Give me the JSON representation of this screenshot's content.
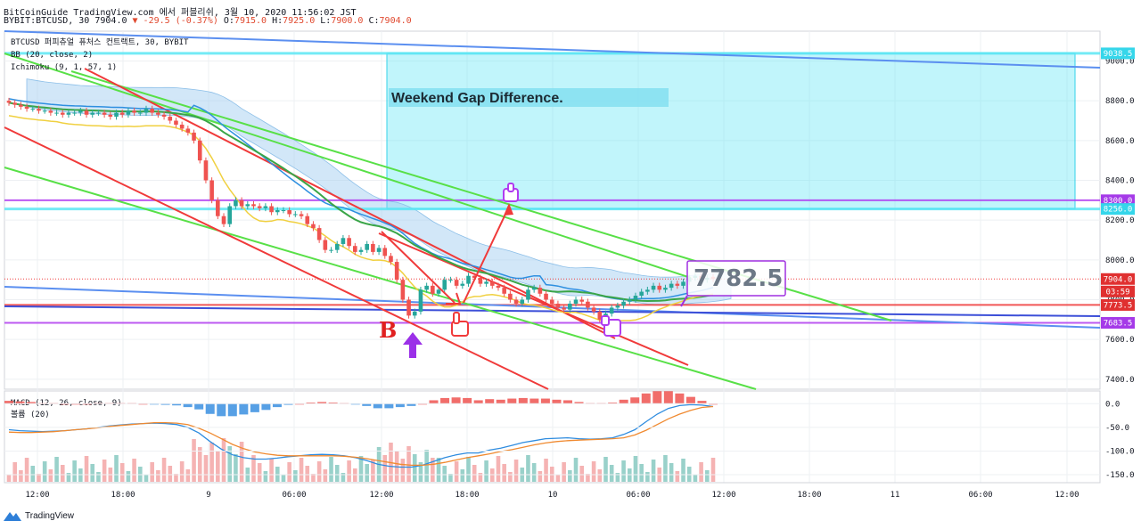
{
  "header": {
    "line1": "BitCoinGuide TradingView.com 에서 퍼블리쉬, 3월 10, 2020 11:56:02 JST",
    "symbol": "BYBIT:BTCUSD, 30",
    "last": "7904.0",
    "change": "▼ -29.5 (-0.37%)",
    "o_label": "O:",
    "o": "7915.0",
    "h_label": "H:",
    "h": "7925.0",
    "l_label": "L:",
    "l": "7900.0",
    "c_label": "C:",
    "c": "7904.0"
  },
  "legend": {
    "main": "BTCUSD 퍼피츄얼 퓨처스 컨트랙트, 30, BYBIT",
    "bb": "BB (20, close, 2)",
    "ichimoku": "Ichimoku (9, 1, 57, 1)",
    "macd": "MACD (12, 26, close, 9)",
    "volume": "볼륨 (20)"
  },
  "annotations": {
    "gap_box": "Weekend Gap Difference.",
    "price_callout": "7782.5",
    "b_mark": "B"
  },
  "footer": {
    "brand": "TradingView"
  },
  "colors": {
    "up": "#26a69a",
    "down": "#ef5350",
    "cyan": "#5ce6f5",
    "violet": "#b03cf0",
    "red_line": "#f03a3a",
    "green_line": "#58e047",
    "blue_line": "#5b8ff0",
    "bb_blue": "#2e8fe0",
    "ichi_green": "#3aa548",
    "ichi_yellow": "#f0d040",
    "macd_blue": "#2f8cdf",
    "macd_orange": "#f08a30"
  },
  "chart_data": [
    {
      "type": "candlestick",
      "title": "BTCUSD 퍼피츄얼 퓨처스 컨트랙트, 30, BYBIT",
      "ylim": [
        7350,
        9150
      ],
      "yticks": [
        "7400.0",
        "7600.0",
        "7800.0",
        "8000.0",
        "8200.0",
        "8400.0",
        "8600.0",
        "8800.0",
        "9000.0"
      ],
      "xticks": [
        "12:00",
        "18:00",
        "9",
        "06:00",
        "12:00",
        "18:00",
        "10",
        "06:00",
        "12:00",
        "18:00",
        "11",
        "06:00",
        "12:00"
      ],
      "price_labels": [
        {
          "label": "9038.5",
          "color": "cyan"
        },
        {
          "label": "8300.0",
          "color": "violet"
        },
        {
          "label": "8256.0",
          "color": "cyan"
        },
        {
          "label": "7904.0",
          "color": "red"
        },
        {
          "label": "03:59",
          "color": "red"
        },
        {
          "label": "7773.5",
          "color": "red"
        },
        {
          "label": "7683.5",
          "color": "violet"
        }
      ],
      "hlines": [
        {
          "y": 9038.5,
          "color": "cyan"
        },
        {
          "y": 8256,
          "color": "cyan"
        },
        {
          "y": 8300,
          "color": "violet"
        },
        {
          "y": 7773.5,
          "color": "red"
        },
        {
          "y": 7683.5,
          "color": "violet"
        }
      ],
      "gap_box": {
        "y0": 8256,
        "y1": 9038.5
      },
      "close_series": [
        8790,
        8780,
        8770,
        8760,
        8760,
        8750,
        8750,
        8740,
        8740,
        8730,
        8740,
        8740,
        8750,
        8730,
        8740,
        8740,
        8730,
        8720,
        8740,
        8730,
        8750,
        8740,
        8740,
        8760,
        8740,
        8730,
        8720,
        8700,
        8680,
        8660,
        8640,
        8600,
        8500,
        8400,
        8300,
        8220,
        8180,
        8270,
        8300,
        8270,
        8280,
        8270,
        8260,
        8270,
        8240,
        8250,
        8250,
        8230,
        8230,
        8220,
        8180,
        8160,
        8100,
        8050,
        8050,
        8080,
        8110,
        8070,
        8040,
        8050,
        8080,
        8040,
        8060,
        8020,
        7990,
        7900,
        7800,
        7720,
        7740,
        7850,
        7870,
        7830,
        7850,
        7900,
        7900,
        7870,
        7880,
        7920,
        7910,
        7880,
        7890,
        7870,
        7860,
        7830,
        7800,
        7780,
        7800,
        7850,
        7860,
        7830,
        7800,
        7780,
        7760,
        7750,
        7780,
        7800,
        7790,
        7760,
        7740,
        7700,
        7730,
        7760,
        7770,
        7790,
        7800,
        7820,
        7840,
        7850,
        7870,
        7850,
        7860,
        7880,
        7870,
        7890,
        7910,
        7920,
        7900,
        7910,
        7904
      ],
      "open_series": [
        8800,
        8790,
        8780,
        8770,
        8760,
        8760,
        8750,
        8750,
        8740,
        8740,
        8730,
        8740,
        8740,
        8750,
        8730,
        8740,
        8740,
        8730,
        8720,
        8740,
        8730,
        8750,
        8740,
        8740,
        8760,
        8740,
        8730,
        8720,
        8700,
        8680,
        8660,
        8640,
        8600,
        8500,
        8400,
        8300,
        8220,
        8180,
        8270,
        8300,
        8270,
        8280,
        8270,
        8260,
        8270,
        8240,
        8250,
        8250,
        8230,
        8230,
        8220,
        8180,
        8160,
        8100,
        8050,
        8050,
        8080,
        8110,
        8070,
        8040,
        8050,
        8080,
        8040,
        8060,
        8020,
        7990,
        7900,
        7800,
        7720,
        7740,
        7850,
        7870,
        7830,
        7850,
        7900,
        7900,
        7870,
        7880,
        7920,
        7910,
        7880,
        7890,
        7870,
        7860,
        7830,
        7800,
        7780,
        7800,
        7850,
        7860,
        7830,
        7800,
        7780,
        7760,
        7750,
        7780,
        7800,
        7790,
        7760,
        7740,
        7700,
        7730,
        7760,
        7770,
        7790,
        7800,
        7820,
        7840,
        7850,
        7870,
        7850,
        7860,
        7880,
        7870,
        7890,
        7910,
        7920,
        7900,
        7915
      ]
    },
    {
      "type": "macd",
      "title": "MACD (12, 26, close, 9)",
      "ylim": [
        -165,
        25
      ],
      "yticks": [
        "0.0",
        "-50.0",
        "-100.0",
        "-150.0"
      ],
      "macd": [
        -55,
        -57,
        -58,
        -59,
        -58,
        -57,
        -55,
        -53,
        -50,
        -47,
        -45,
        -43,
        -42,
        -41,
        -42,
        -44,
        -50,
        -62,
        -80,
        -96,
        -108,
        -114,
        -117,
        -117,
        -115,
        -112,
        -110,
        -108,
        -107,
        -108,
        -110,
        -114,
        -120,
        -128,
        -132,
        -134,
        -134,
        -130,
        -122,
        -114,
        -108,
        -104,
        -104,
        -98,
        -94,
        -88,
        -82,
        -78,
        -74,
        -73,
        -72,
        -74,
        -75,
        -74,
        -72,
        -65,
        -55,
        -38,
        -22,
        -10,
        -4,
        -2,
        -3,
        -6
      ],
      "signal": [
        -60,
        -61,
        -61,
        -60,
        -59,
        -57,
        -55,
        -53,
        -51,
        -48,
        -46,
        -44,
        -42,
        -40,
        -40,
        -41,
        -44,
        -52,
        -62,
        -74,
        -86,
        -95,
        -102,
        -106,
        -109,
        -110,
        -110,
        -110,
        -110,
        -110,
        -111,
        -113,
        -116,
        -120,
        -124,
        -128,
        -130,
        -130,
        -128,
        -124,
        -119,
        -114,
        -110,
        -106,
        -101,
        -97,
        -92,
        -87,
        -83,
        -80,
        -78,
        -77,
        -76,
        -75,
        -74,
        -72,
        -66,
        -56,
        -44,
        -32,
        -22,
        -14,
        -8,
        -6
      ]
    }
  ]
}
